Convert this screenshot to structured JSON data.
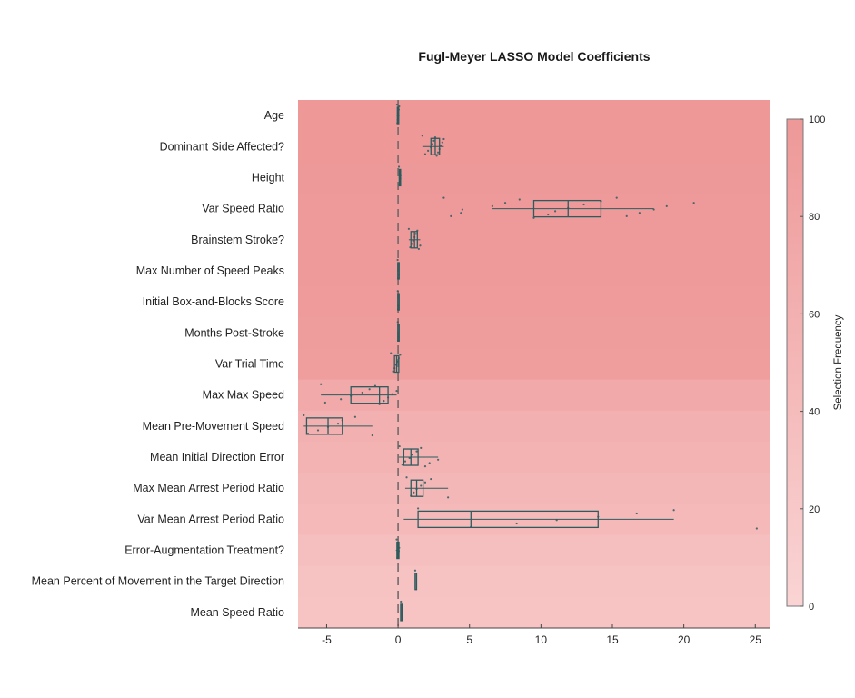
{
  "chart_data": {
    "type": "box",
    "title": "Fugl-Meyer LASSO Model Coefficients",
    "xlabel": "",
    "ylabel": "",
    "xlim": [
      -7,
      26
    ],
    "xticks": [
      -5,
      0,
      5,
      10,
      15,
      20,
      25
    ],
    "grid": false,
    "zero_line": {
      "x": 0,
      "style": "dashed"
    },
    "colorbar": {
      "label": "Selection Frequency",
      "range": [
        0,
        100
      ],
      "ticks": [
        0,
        20,
        40,
        60,
        80,
        100
      ],
      "color_low": "#fad4d4",
      "color_high": "#ee9898"
    },
    "colors": {
      "box": "#2e5b5e",
      "points": "#2e5b5e",
      "zero_line": "#666666"
    },
    "features": [
      {
        "name": "Age",
        "selection_frequency": 100,
        "q1": -0.05,
        "median": -0.02,
        "q3": 0.02,
        "whisker_low": -0.1,
        "whisker_high": 0.1,
        "points": [
          -0.08,
          -0.05,
          -0.03,
          0,
          0.02,
          0.05,
          0.08
        ]
      },
      {
        "name": "Dominant Side Affected?",
        "selection_frequency": 100,
        "q1": 2.3,
        "median": 2.6,
        "q3": 2.9,
        "whisker_low": 1.7,
        "whisker_high": 3.2,
        "points": [
          1.7,
          1.9,
          2.1,
          2.3,
          2.4,
          2.5,
          2.6,
          2.7,
          2.8,
          2.9,
          3.0,
          3.1,
          3.2
        ]
      },
      {
        "name": "Height",
        "selection_frequency": 99,
        "q1": 0.08,
        "median": 0.12,
        "q3": 0.16,
        "whisker_low": 0.05,
        "whisker_high": 0.2,
        "points": [
          0.06,
          0.1,
          0.13,
          0.16,
          0.19
        ]
      },
      {
        "name": "Var Speed Ratio",
        "selection_frequency": 97,
        "q1": 9.5,
        "median": 11.9,
        "q3": 14.2,
        "whisker_low": 6.6,
        "whisker_high": 17.9,
        "points": [
          3.2,
          3.7,
          4.4,
          4.5,
          6.6,
          7.5,
          8.5,
          9.5,
          10.5,
          11.0,
          11.9,
          13.0,
          14.2,
          15.3,
          16.0,
          16.9,
          17.9,
          18.8,
          20.7
        ]
      },
      {
        "name": "Brainstem Stroke?",
        "selection_frequency": 97,
        "q1": 0.9,
        "median": 1.15,
        "q3": 1.35,
        "whisker_low": 0.75,
        "whisker_high": 1.55,
        "points": [
          0.75,
          0.85,
          0.95,
          1.05,
          1.15,
          1.25,
          1.35,
          1.45,
          1.55
        ]
      },
      {
        "name": "Max Number of Speed Peaks",
        "selection_frequency": 96,
        "q1": -0.02,
        "median": 0,
        "q3": 0.02,
        "whisker_low": -0.05,
        "whisker_high": 0.05,
        "points": [
          -0.03,
          0,
          0.03
        ]
      },
      {
        "name": "Initial Box-and-Blocks Score",
        "selection_frequency": 95,
        "q1": -0.02,
        "median": 0,
        "q3": 0.02,
        "whisker_low": -0.04,
        "whisker_high": 0.04,
        "points": [
          -0.02,
          0,
          0.02
        ]
      },
      {
        "name": "Months Post-Stroke",
        "selection_frequency": 93,
        "q1": -0.02,
        "median": 0,
        "q3": 0.02,
        "whisker_low": -0.04,
        "whisker_high": 0.04,
        "points": [
          -0.02,
          0,
          0.02
        ]
      },
      {
        "name": "Var Trial Time",
        "selection_frequency": 92,
        "q1": -0.25,
        "median": -0.1,
        "q3": 0.05,
        "whisker_low": -0.5,
        "whisker_high": 0.2,
        "points": [
          -0.5,
          -0.35,
          -0.25,
          -0.15,
          -0.05,
          0.05,
          0.15
        ]
      },
      {
        "name": "Max Max Speed",
        "selection_frequency": 71,
        "q1": -3.3,
        "median": -1.3,
        "q3": -0.7,
        "whisker_low": -5.4,
        "whisker_high": -0.1,
        "points": [
          -5.4,
          -5.1,
          -4.0,
          -3.3,
          -2.5,
          -2.0,
          -1.6,
          -1.3,
          -1.0,
          -0.7,
          -0.4,
          -0.1
        ]
      },
      {
        "name": "Mean Pre-Movement Speed",
        "selection_frequency": 60,
        "q1": -6.4,
        "median": -4.9,
        "q3": -3.9,
        "whisker_low": -6.6,
        "whisker_high": -1.8,
        "points": [
          -6.6,
          -6.3,
          -5.6,
          -4.9,
          -4.2,
          -3.9,
          -3.0,
          -1.8
        ]
      },
      {
        "name": "Mean Initial Direction Error",
        "selection_frequency": 55,
        "q1": 0.4,
        "median": 0.9,
        "q3": 1.4,
        "whisker_low": 0.05,
        "whisker_high": 2.8,
        "points": [
          0.1,
          0.3,
          0.5,
          0.8,
          1.0,
          1.3,
          1.6,
          1.9,
          2.2,
          2.8
        ]
      },
      {
        "name": "Max Mean Arrest Period Ratio",
        "selection_frequency": 48,
        "q1": 0.9,
        "median": 1.3,
        "q3": 1.75,
        "whisker_low": 0.5,
        "whisker_high": 3.5,
        "points": [
          0.6,
          0.9,
          1.1,
          1.3,
          1.6,
          1.9,
          2.3,
          3.5
        ]
      },
      {
        "name": "Var Mean Arrest Period Ratio",
        "selection_frequency": 45,
        "q1": 1.4,
        "median": 5.1,
        "q3": 14.0,
        "whisker_low": 0.4,
        "whisker_high": 19.3,
        "points": [
          1.4,
          5.1,
          8.3,
          11.1,
          14.0,
          16.7,
          19.3,
          25.1
        ]
      },
      {
        "name": "Error-Augmentation Treatment?",
        "selection_frequency": 35,
        "q1": -0.08,
        "median": 0,
        "q3": 0.06,
        "whisker_low": -0.15,
        "whisker_high": 0.1,
        "points": [
          -0.1,
          -0.05,
          0,
          0.05,
          0.08
        ]
      },
      {
        "name": "Mean Percent of Movement in the Target Direction",
        "selection_frequency": 30,
        "q1": 1.2,
        "median": 1.2,
        "q3": 1.2,
        "whisker_low": 1.2,
        "whisker_high": 1.2,
        "points": [
          1.2
        ]
      },
      {
        "name": "Mean Speed Ratio",
        "selection_frequency": 28,
        "q1": 0.18,
        "median": 0.2,
        "q3": 0.22,
        "whisker_low": 0.18,
        "whisker_high": 0.22,
        "points": [
          0.2
        ]
      }
    ]
  }
}
